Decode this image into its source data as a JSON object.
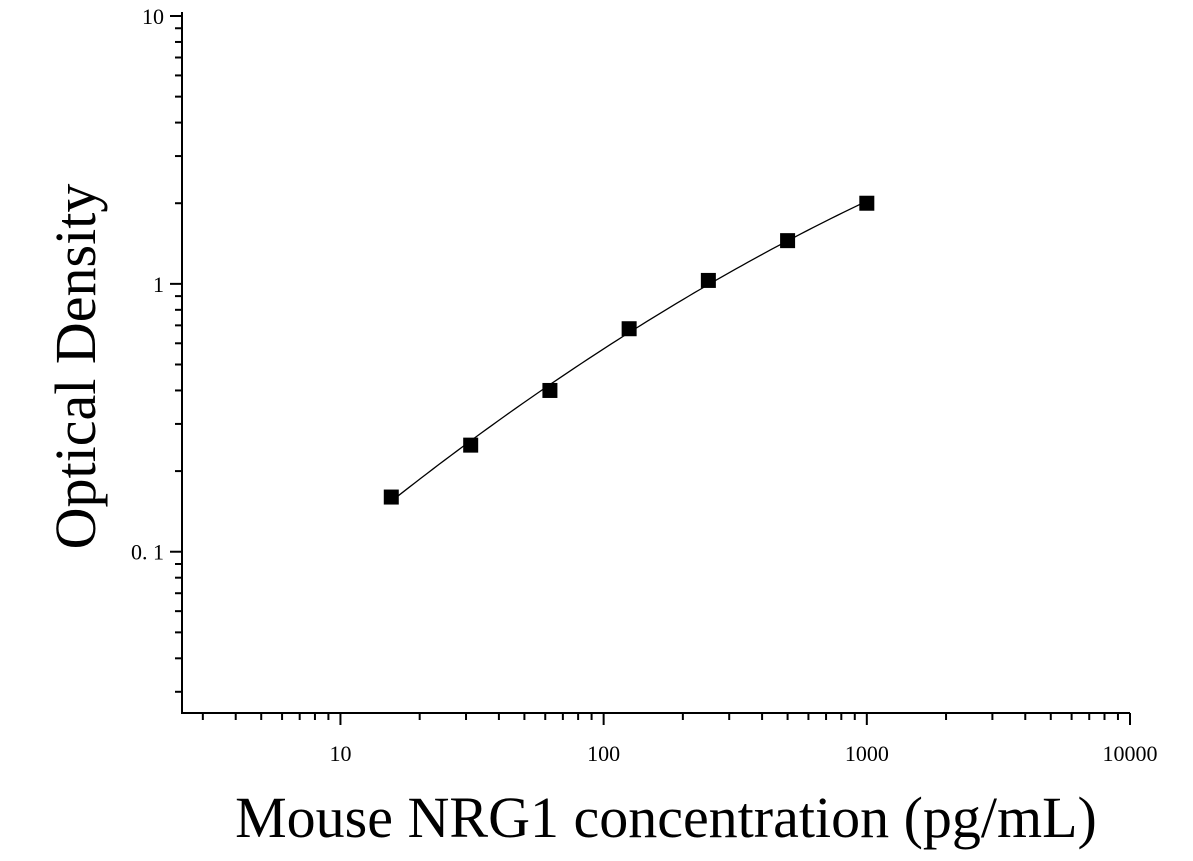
{
  "chart_data": {
    "type": "scatter",
    "title": "",
    "xlabel": "Mouse NRG1 concentration (pg/mL)",
    "ylabel": "Optical Density",
    "x_scale": "log",
    "y_scale": "log",
    "xlim": [
      2.5,
      10000
    ],
    "ylim": [
      0.025,
      10
    ],
    "x_ticks": [
      10,
      100,
      1000,
      10000
    ],
    "x_tick_labels": [
      "10",
      "100",
      "1000",
      "10000"
    ],
    "y_ticks": [
      0.1,
      1,
      10
    ],
    "y_tick_labels": [
      "0. 1",
      "1",
      "10"
    ],
    "grid": false,
    "legend": "none",
    "series": [
      {
        "marker": "square",
        "x": [
          15.6,
          31.25,
          62.5,
          125,
          250,
          500,
          1000
        ],
        "y": [
          0.16,
          0.25,
          0.4,
          0.68,
          1.03,
          1.45,
          2.0
        ]
      }
    ],
    "fit_curve": true,
    "colors": {
      "marker": "#000000",
      "line": "#000000",
      "axis": "#000000"
    }
  }
}
